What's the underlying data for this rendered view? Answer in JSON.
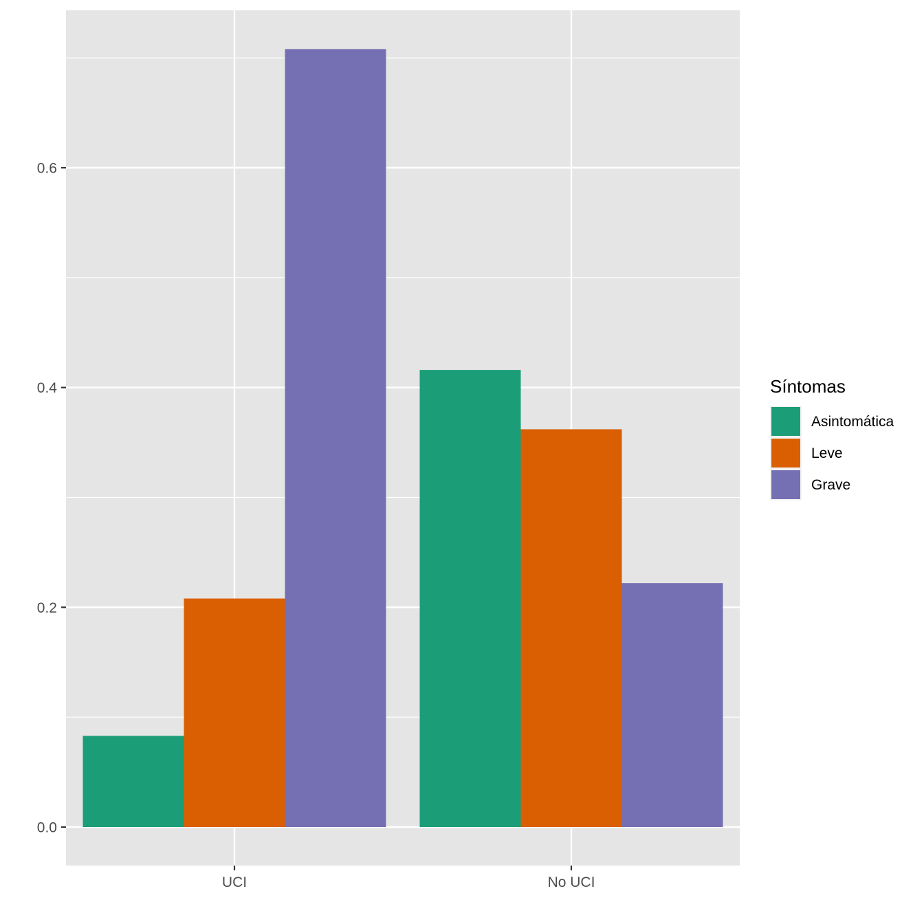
{
  "chart_data": {
    "type": "bar",
    "categories": [
      "UCI",
      "No UCI"
    ],
    "series": [
      {
        "name": "Asintomática",
        "color": "#1B9E77",
        "values": [
          0.083,
          0.416
        ]
      },
      {
        "name": "Leve",
        "color": "#D95F02",
        "values": [
          0.208,
          0.362
        ]
      },
      {
        "name": "Grave",
        "color": "#7570B3",
        "values": [
          0.708,
          0.222
        ]
      }
    ],
    "yticks": [
      0.0,
      0.2,
      0.4,
      0.6
    ],
    "ytick_labels": [
      "0.0",
      "0.2",
      "0.4",
      "0.6"
    ],
    "ylim": [
      -0.035,
      0.744
    ],
    "xlabel": "",
    "ylabel": "",
    "legend": {
      "title": "Síntomas",
      "position": "right"
    },
    "panel_background": "#E5E5E5",
    "grid": true
  }
}
